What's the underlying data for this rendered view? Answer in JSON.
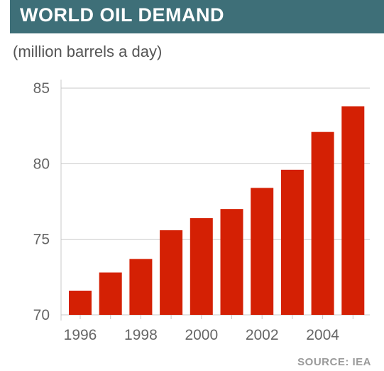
{
  "header": {
    "title": "WORLD OIL DEMAND",
    "subtitle": "(million barrels a day)"
  },
  "footer": {
    "source": "SOURCE: IEA"
  },
  "colors": {
    "title_bar": "#3e6f78",
    "bar": "#d42004",
    "grid": "#c8c8c8",
    "axis_text": "#666666"
  },
  "chart_data": {
    "type": "bar",
    "title": "WORLD OIL DEMAND",
    "subtitle": "(million barrels a day)",
    "xlabel": "",
    "ylabel": "",
    "categories": [
      "1996",
      "1997",
      "1998",
      "1999",
      "2000",
      "2001",
      "2002",
      "2003",
      "2004",
      "2005"
    ],
    "x_tick_labels": [
      "1996",
      "1998",
      "2000",
      "2002",
      "2004"
    ],
    "values": [
      71.6,
      72.8,
      73.7,
      75.6,
      76.4,
      77.0,
      78.4,
      79.6,
      82.1,
      83.8
    ],
    "ylim": [
      70,
      85
    ],
    "y_ticks": [
      70,
      75,
      80,
      85
    ],
    "grid": true,
    "source": "SOURCE: IEA"
  }
}
